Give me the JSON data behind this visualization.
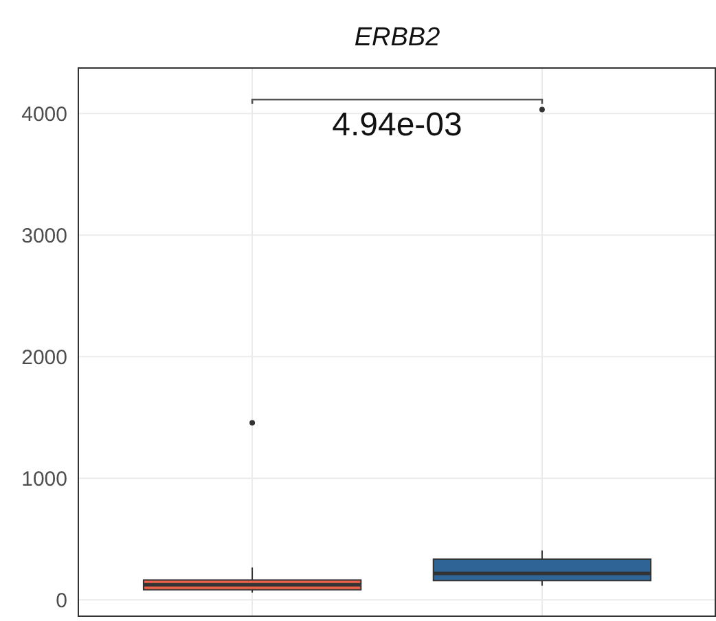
{
  "chart_data": {
    "type": "box",
    "title": "ERBB2",
    "categories": [
      null,
      null
    ],
    "ylim": [
      -140,
      4380
    ],
    "yticks": [
      0,
      1000,
      2000,
      3000,
      4000
    ],
    "grid": true,
    "boxes": [
      {
        "low": 60,
        "q1": 83,
        "median": 124,
        "q3": 163,
        "high": 266,
        "outliers": [
          1456
        ]
      },
      {
        "low": 116,
        "q1": 158,
        "median": 218,
        "q3": 335,
        "high": 406,
        "outliers": [
          4033
        ]
      }
    ],
    "colors": [
      "#e8634a",
      "#2f6496"
    ],
    "annotations": [
      "4.94e-03"
    ]
  }
}
